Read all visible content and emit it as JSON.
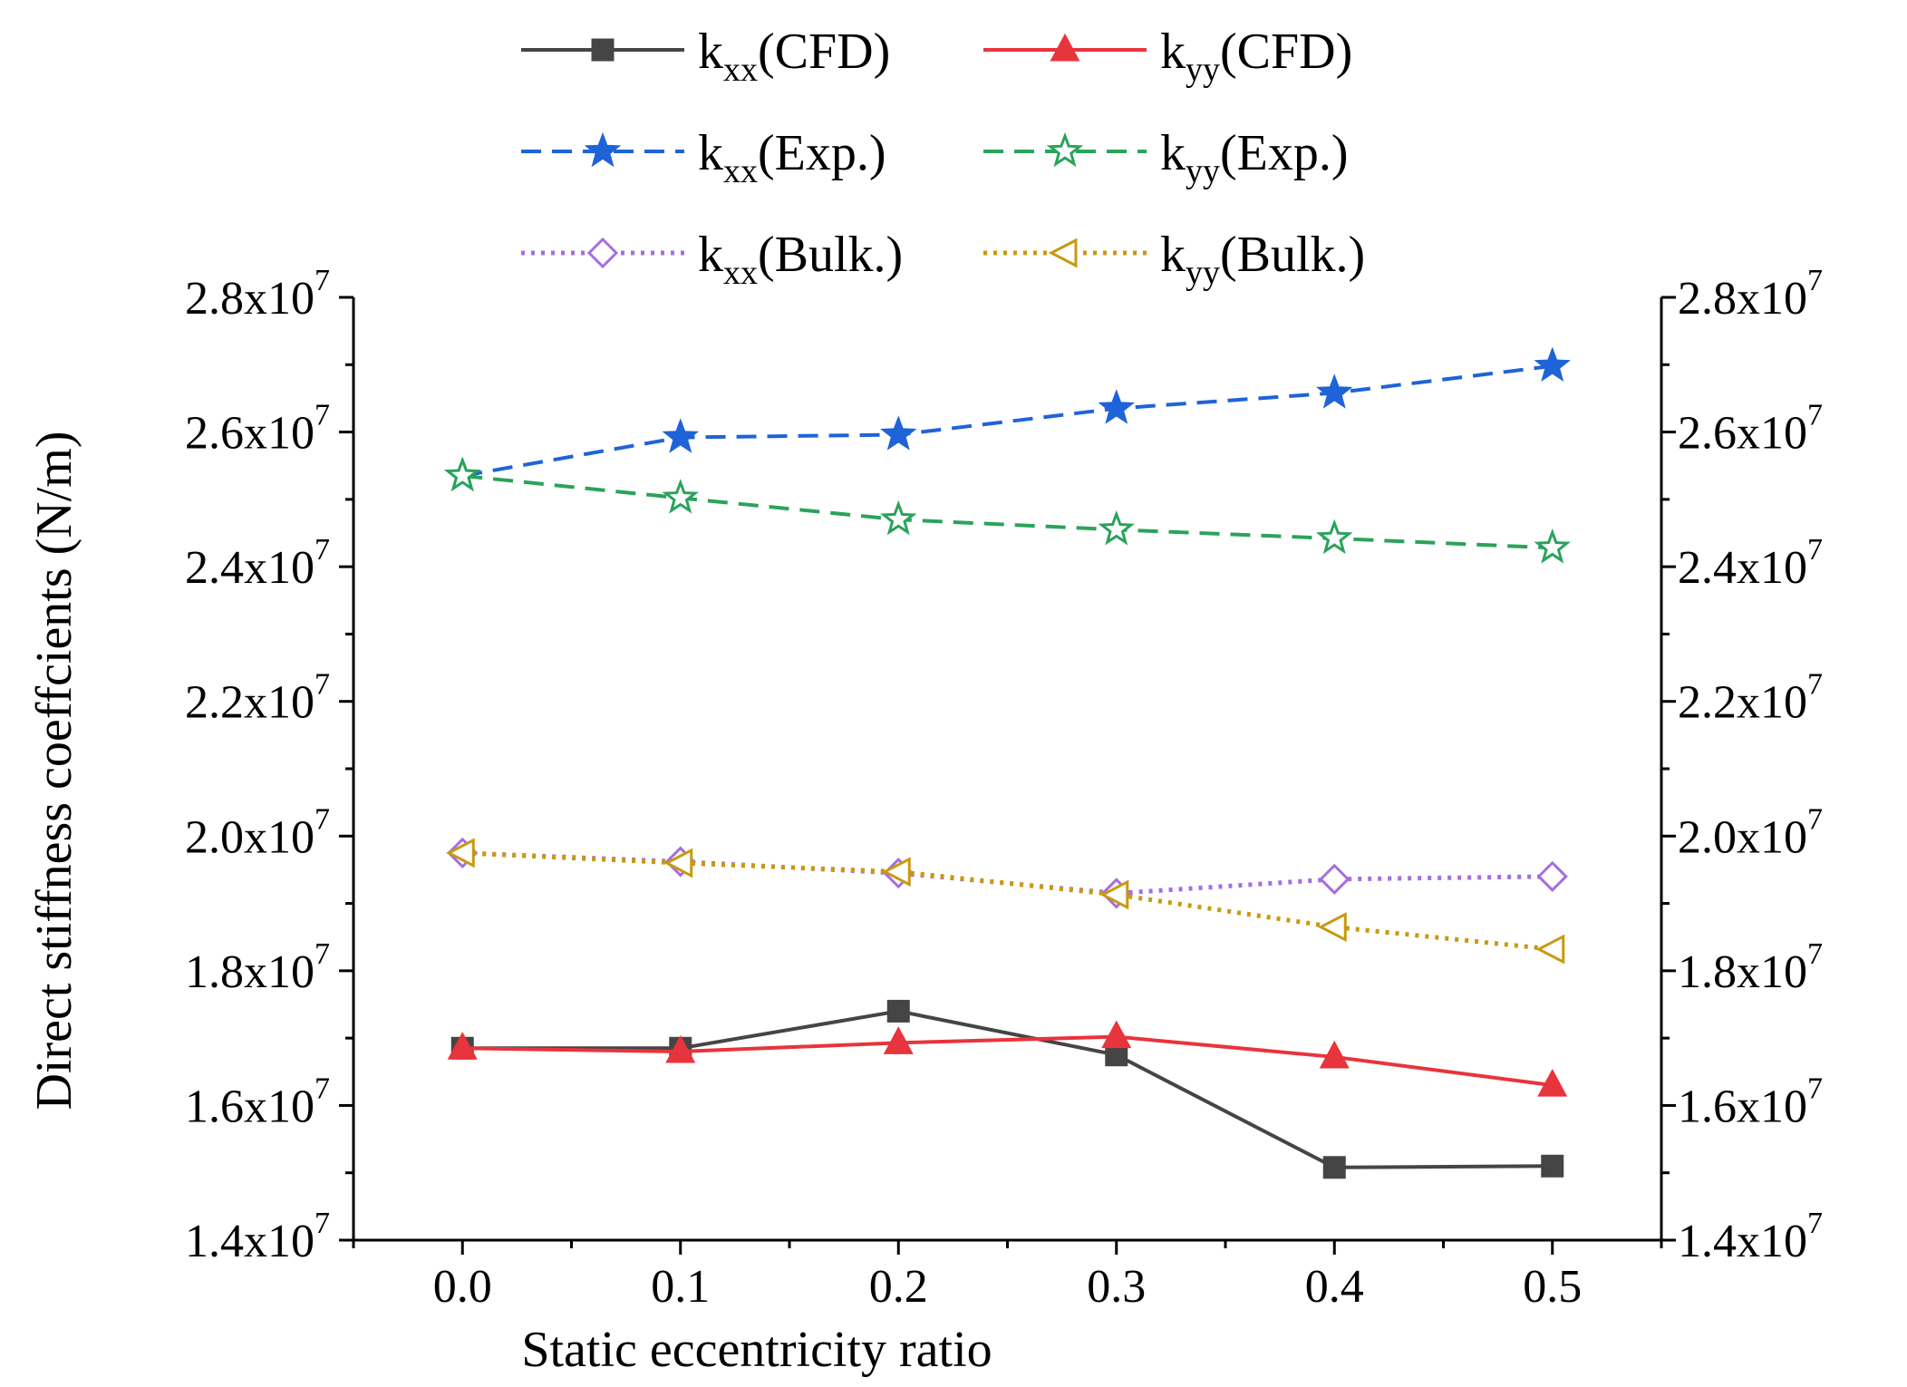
{
  "chart_data": {
    "type": "line",
    "xlabel": "Static eccentricity ratio",
    "ylabel": "Direct stiffness coeffcients (N/m)",
    "x": [
      0.0,
      0.1,
      0.2,
      0.3,
      0.4,
      0.5
    ],
    "xlim": [
      -0.05,
      0.55
    ],
    "ylim": [
      14000000,
      28000000
    ],
    "x_ticks": [
      {
        "value": 0.0,
        "label": "0.0"
      },
      {
        "value": 0.1,
        "label": "0.1"
      },
      {
        "value": 0.2,
        "label": "0.2"
      },
      {
        "value": 0.3,
        "label": "0.3"
      },
      {
        "value": 0.4,
        "label": "0.4"
      },
      {
        "value": 0.5,
        "label": "0.5"
      }
    ],
    "y_ticks": [
      {
        "value": 14000000,
        "mantissa": "1.4x10",
        "exp": "7"
      },
      {
        "value": 16000000,
        "mantissa": "1.6x10",
        "exp": "7"
      },
      {
        "value": 18000000,
        "mantissa": "1.8x10",
        "exp": "7"
      },
      {
        "value": 20000000,
        "mantissa": "2.0x10",
        "exp": "7"
      },
      {
        "value": 22000000,
        "mantissa": "2.2x10",
        "exp": "7"
      },
      {
        "value": 24000000,
        "mantissa": "2.4x10",
        "exp": "7"
      },
      {
        "value": 26000000,
        "mantissa": "2.6x10",
        "exp": "7"
      },
      {
        "value": 28000000,
        "mantissa": "2.8x10",
        "exp": "7"
      }
    ],
    "legend_position": "top",
    "series": [
      {
        "id": "kxx-cfd",
        "base": "k",
        "sub": "xx",
        "suffix": "(CFD)",
        "color": "#454545",
        "dash": "solid",
        "marker": "square",
        "filled": true,
        "values": [
          16850000,
          16850000,
          17400000,
          16750000,
          15080000,
          15100000
        ]
      },
      {
        "id": "kyy-cfd",
        "base": "k",
        "sub": "yy",
        "suffix": "(CFD)",
        "color": "#e8343c",
        "dash": "solid",
        "marker": "triangle",
        "filled": true,
        "values": [
          16850000,
          16800000,
          16930000,
          17020000,
          16720000,
          16300000
        ]
      },
      {
        "id": "kxx-exp",
        "base": "k",
        "sub": "xx",
        "suffix": "(Exp.)",
        "color": "#1f63d8",
        "dash": "dash",
        "marker": "star",
        "filled": true,
        "values": [
          25350000,
          25920000,
          25960000,
          26350000,
          26580000,
          26980000
        ]
      },
      {
        "id": "kyy-exp",
        "base": "k",
        "sub": "yy",
        "suffix": "(Exp.)",
        "color": "#2aa35a",
        "dash": "dash",
        "marker": "star",
        "filled": false,
        "values": [
          25350000,
          25020000,
          24700000,
          24550000,
          24420000,
          24280000
        ]
      },
      {
        "id": "kxx-bulk",
        "base": "k",
        "sub": "xx",
        "suffix": "(Bulk.)",
        "color": "#a66ee0",
        "dash": "dot",
        "marker": "diamond",
        "filled": false,
        "values": [
          19750000,
          19620000,
          19450000,
          19150000,
          19360000,
          19400000
        ]
      },
      {
        "id": "kyy-bulk",
        "base": "k",
        "sub": "yy",
        "suffix": "(Bulk.)",
        "color": "#c89a10",
        "dash": "dot",
        "marker": "triangle-left",
        "filled": false,
        "values": [
          19750000,
          19600000,
          19470000,
          19130000,
          18650000,
          18320000
        ]
      }
    ]
  }
}
